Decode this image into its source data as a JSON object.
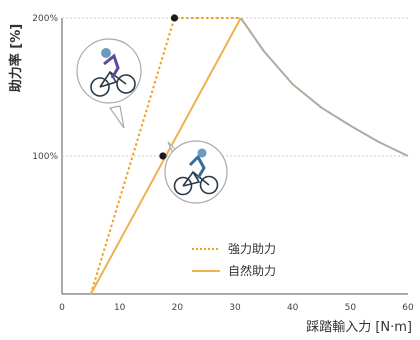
{
  "chart_data": {
    "type": "line",
    "xlabel": "踩踏輸入力 [N·m]",
    "ylabel": "助力率 [%]",
    "xlim": [
      0,
      60
    ],
    "ylim": [
      0,
      200
    ],
    "x_ticks": [
      "0",
      "10",
      "20",
      "30",
      "40",
      "50",
      "60"
    ],
    "y_ticks": [
      "100%",
      "200%"
    ],
    "grid": "horizontal dotted at 100% and 200%",
    "legend_position": "lower-center",
    "series": [
      {
        "name": "強力助力",
        "style": "dotted",
        "color": "#f0a020",
        "x": [
          5,
          19.5,
          31
        ],
        "y": [
          0,
          200,
          200
        ]
      },
      {
        "name": "自然助力",
        "style": "solid",
        "color": "#f0b050",
        "x": [
          5,
          31
        ],
        "y": [
          0,
          200
        ]
      },
      {
        "name": "",
        "style": "solid",
        "color": "#b0aaa0",
        "x": [
          31,
          35,
          40,
          45,
          50,
          55,
          60
        ],
        "y": [
          200,
          176,
          152,
          135,
          122,
          110,
          100
        ]
      }
    ],
    "markers": [
      {
        "x": 19.5,
        "y": 200
      },
      {
        "x": 17.5,
        "y": 100
      }
    ],
    "colors": {
      "strong": "#f0a020",
      "natural": "#f0b050",
      "decline": "#b0aaa0",
      "marker": "#1a1a1a",
      "grid": "#cccccc",
      "axis": "#555555"
    },
    "icons": [
      "cyclist-strong-icon",
      "cyclist-natural-icon"
    ]
  }
}
